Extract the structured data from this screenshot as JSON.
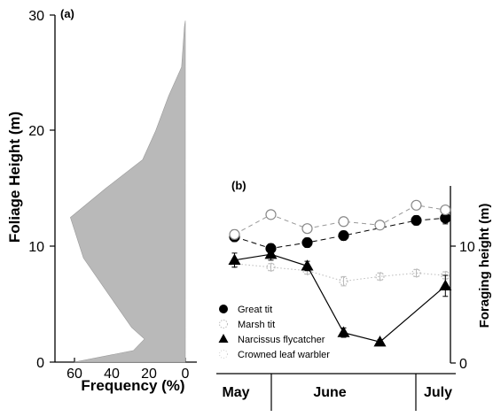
{
  "chart_data": [
    {
      "id": "a",
      "panel_label": "(a)",
      "type": "area",
      "orientation": "horizontal",
      "xlabel": "Frequency (%)",
      "ylabel": "Foliage Height (m)",
      "xlim": [
        0,
        65
      ],
      "x_reversed": true,
      "ylim": [
        0,
        30
      ],
      "xticks": [
        "60",
        "40",
        "20",
        "0"
      ],
      "yticks": [
        "0",
        "10",
        "20",
        "30"
      ],
      "profile": [
        {
          "height": 0,
          "frequency": 60
        },
        {
          "height": 1,
          "frequency": 28
        },
        {
          "height": 2,
          "frequency": 22
        },
        {
          "height": 3,
          "frequency": 29
        },
        {
          "height": 6,
          "frequency": 42
        },
        {
          "height": 9,
          "frequency": 55
        },
        {
          "height": 12.5,
          "frequency": 62
        },
        {
          "height": 15,
          "frequency": 43
        },
        {
          "height": 17.5,
          "frequency": 23
        },
        {
          "height": 20,
          "frequency": 16
        },
        {
          "height": 23,
          "frequency": 9
        },
        {
          "height": 25.5,
          "frequency": 2
        },
        {
          "height": 29,
          "frequency": 0.5
        },
        {
          "height": 29.5,
          "frequency": 0
        }
      ],
      "fill_color": "#b9b9b9"
    },
    {
      "id": "b",
      "panel_label": "(b)",
      "type": "line",
      "ylabel": "Foraging height (m)",
      "ylim": [
        0,
        14.5
      ],
      "yticks": [
        "0",
        "10"
      ],
      "x_periods": [
        "May",
        "June",
        "July"
      ],
      "x_period_bounds": [
        [
          0,
          1
        ],
        [
          1,
          5.5
        ],
        [
          5.5,
          6.5
        ]
      ],
      "x": [
        0.5,
        1.5,
        2.5,
        3.5,
        4.5,
        5.5,
        6.3
      ],
      "series": [
        {
          "name": "Great tit",
          "marker": "circle-filled",
          "line": "dashed",
          "values": [
            10.8,
            9.8,
            10.3,
            10.9,
            null,
            12.2,
            12.4
          ],
          "errors": [
            0.4,
            0.4,
            0.4,
            0.4,
            null,
            0.4,
            0.5
          ]
        },
        {
          "name": "Marsh tit",
          "marker": "circle-open",
          "line": "dotted",
          "values": [
            8.5,
            8.2,
            7.9,
            7.0,
            7.4,
            7.7,
            7.5
          ],
          "errors": [
            0.3,
            0.3,
            0.3,
            0.4,
            0.3,
            0.3,
            0.3
          ]
        },
        {
          "name": "Narcissus flycatcher",
          "marker": "triangle-filled",
          "line": "solid",
          "values": [
            8.8,
            9.3,
            8.3,
            2.6,
            1.8,
            null,
            6.6
          ],
          "errors": [
            0.6,
            0.5,
            0.4,
            0.4,
            0.2,
            null,
            0.9
          ]
        },
        {
          "name": "Crowned leaf warbler",
          "marker": "circle-open",
          "line": "dashed",
          "values": [
            11.0,
            12.7,
            11.5,
            12.1,
            11.8,
            13.5,
            13.1
          ],
          "errors": [
            0.4,
            0.3,
            0.3,
            0.3,
            0.3,
            0.3,
            0.3
          ]
        }
      ],
      "legend_position": "bottom-left"
    }
  ]
}
